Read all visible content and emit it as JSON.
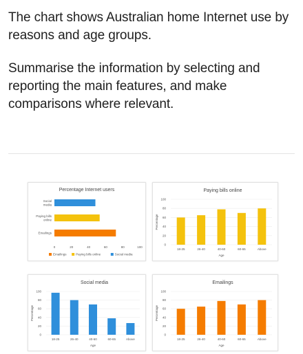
{
  "prompt": {
    "paragraph1": "The chart shows Australian home Internet use by reasons and age groups.",
    "paragraph2": "Summarise the information by selecting and reporting the main features, and make comparisons where relevant."
  },
  "colors": {
    "blue": "#2F8FDB",
    "orange": "#F57C00",
    "yellow": "#F4C20D",
    "axis_text": "#555555"
  },
  "chart_data": [
    {
      "type": "bar",
      "orientation": "horizontal",
      "title": "Percentage Internet users",
      "categories": [
        "Social media",
        "Paying bills online",
        "Emailings"
      ],
      "series": [
        {
          "name": "Social media",
          "values": [
            48,
            null,
            null
          ]
        },
        {
          "name": "Paying bills online",
          "values": [
            null,
            53,
            null
          ]
        },
        {
          "name": "Emailings",
          "values": [
            null,
            null,
            72
          ]
        }
      ],
      "xticks": [
        "0",
        "20",
        "40",
        "60",
        "80",
        "100"
      ],
      "xlim": [
        0,
        100
      ],
      "legend": [
        "Emailings",
        "Paying bills online",
        "Social media"
      ],
      "legend_position": "bottom",
      "grid": false
    },
    {
      "type": "bar",
      "title": "Paying bills online",
      "categories": [
        "18-25",
        "26-40",
        "40-60",
        "60-65",
        "Above"
      ],
      "values": [
        60,
        65,
        78,
        70,
        80
      ],
      "xlabel": "Age",
      "ylabel": "Percentage",
      "yticks": [
        "0",
        "20",
        "40",
        "60",
        "80",
        "100"
      ],
      "ylim": [
        0,
        100
      ],
      "grid": true
    },
    {
      "type": "bar",
      "title": "Social media",
      "categories": [
        "18-25",
        "26-40",
        "40-60",
        "60-65",
        "Above"
      ],
      "values": [
        97,
        80,
        70,
        38,
        27
      ],
      "xlabel": "Age",
      "ylabel": "Percentage",
      "yticks": [
        "0",
        "20",
        "40",
        "60",
        "80",
        "100"
      ],
      "ylim": [
        0,
        100
      ],
      "grid": true
    },
    {
      "type": "bar",
      "title": "Emailings",
      "categories": [
        "18-25",
        "26-40",
        "40-60",
        "60-65",
        "Above"
      ],
      "values": [
        60,
        65,
        78,
        70,
        80
      ],
      "xlabel": "Age",
      "ylabel": "Percentage",
      "yticks": [
        "0",
        "20",
        "40",
        "60",
        "80",
        "100"
      ],
      "ylim": [
        0,
        100
      ],
      "grid": true
    }
  ]
}
